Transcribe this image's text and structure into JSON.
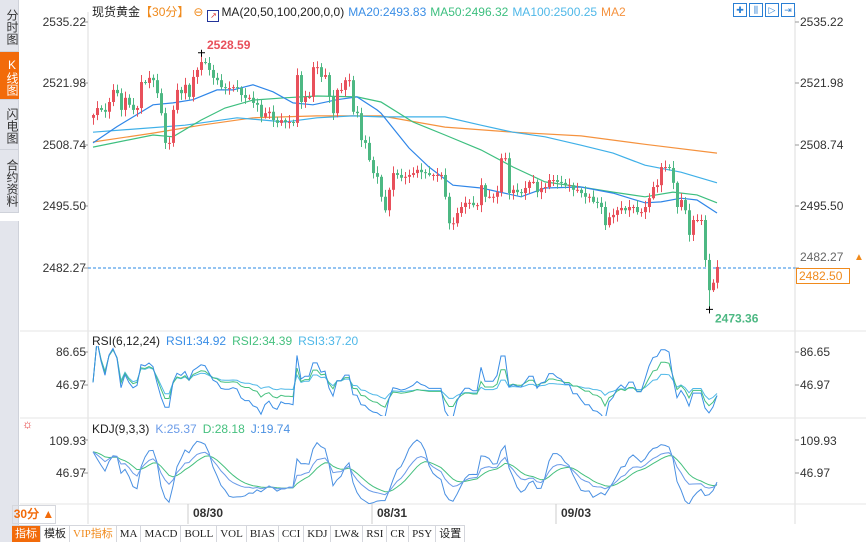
{
  "sidebar": {
    "items": [
      {
        "label": "分时图"
      },
      {
        "label": "K线图",
        "active": true
      },
      {
        "label": "闪电图"
      },
      {
        "label": "合约资料"
      }
    ]
  },
  "header": {
    "instrument": "现货黄金",
    "period": "【30分】",
    "ma_label": "MA(20,50,100,200,0,0)",
    "ma20": "MA20:2493.83",
    "ma50": "MA50:2496.32",
    "ma100": "MA100:2500.25",
    "ma200": "MA2"
  },
  "toolbar_icons": [
    "crosshair-icon",
    "zoom-range-icon",
    "step-icon",
    "jump-end-icon"
  ],
  "price_axis": {
    "labels": [
      "2535.22",
      "2521.98",
      "2508.74",
      "2495.50",
      "2482.27"
    ],
    "current_price": "2482.50"
  },
  "annotations": {
    "high": {
      "label": "2528.59",
      "value": 2528.59,
      "index": 27
    },
    "low": {
      "label": "2473.36",
      "value": 2473.36,
      "index": 154
    }
  },
  "rsi": {
    "title": "RSI(6,12,24)",
    "rsi1": "RSI1:34.92",
    "rsi2": "RSI2:34.39",
    "rsi3": "RSI3:37.20",
    "axis": [
      "86.65",
      "46.97"
    ]
  },
  "kdj": {
    "title": "KDJ(9,3,3)",
    "k": "K:25.37",
    "d": "D:28.18",
    "j": "J:19.74",
    "axis": [
      "109.93",
      "46.97"
    ]
  },
  "dates": [
    {
      "label": "08/30",
      "index": 24
    },
    {
      "label": "08/31",
      "index": 70
    },
    {
      "label": "09/03",
      "index": 116
    }
  ],
  "timeframe": "30分 ▲",
  "tabs": [
    "指标",
    "模板",
    "VIP指标",
    "MA",
    "MACD",
    "BOLL",
    "VOL",
    "BIAS",
    "CCI",
    "KDJ",
    "LW&",
    "RSI",
    "CR",
    "PSY",
    "设置"
  ],
  "colors": {
    "up": "#e8505b",
    "down": "#4db883",
    "ma20": "#2f86e8",
    "ma50": "#3dbf7f",
    "ma100": "#3fb0e8",
    "ma200": "#f5923e",
    "accent": "#f26b0a"
  },
  "chart_data": {
    "type": "candlestick",
    "ylim": [
      2470,
      2538
    ],
    "closes": [
      2515.2,
      2516.7,
      2516.3,
      2515.9,
      2518.0,
      2520.6,
      2519.9,
      2516.3,
      2518.9,
      2517.4,
      2516.3,
      2516.7,
      2522.3,
      2522.1,
      2523.2,
      2522.7,
      2519.9,
      2515.6,
      2509.2,
      2509.2,
      2516.3,
      2520.6,
      2519.9,
      2521.7,
      2519.1,
      2523.4,
      2524.9,
      2526.6,
      2526.4,
      2524.9,
      2523.2,
      2522.7,
      2521.2,
      2521.0,
      2521.0,
      2521.2,
      2521.0,
      2519.5,
      2518.9,
      2518.9,
      2517.8,
      2517.4,
      2514.8,
      2515.6,
      2515.9,
      2514.1,
      2513.5,
      2514.1,
      2513.7,
      2513.7,
      2513.5,
      2523.8,
      2518.0,
      2519.1,
      2519.1,
      2525.5,
      2525.5,
      2523.4,
      2523.8,
      2519.1,
      2515.6,
      2520.6,
      2520.6,
      2522.7,
      2522.7,
      2515.9,
      2515.6,
      2509.8,
      2509.2,
      2505.5,
      2502.7,
      2501.9,
      2497.6,
      2494.7,
      2499.1,
      2502.7,
      2502.3,
      2501.7,
      2501.9,
      2502.3,
      2502.7,
      2503.4,
      2502.9,
      2502.7,
      2502.3,
      2502.3,
      2502.3,
      2502.3,
      2497.6,
      2491.9,
      2491.9,
      2494.1,
      2495.4,
      2496.3,
      2496.3,
      2495.8,
      2495.8,
      2500.1,
      2497.6,
      2497.6,
      2497.6,
      2498.6,
      2505.9,
      2505.9,
      2498.4,
      2499.1,
      2498.6,
      2498.4,
      2499.5,
      2500.8,
      2500.8,
      2498.6,
      2499.5,
      2499.7,
      2501.2,
      2501.2,
      2500.8,
      2500.6,
      2500.1,
      2500.1,
      2499.1,
      2499.1,
      2498.4,
      2497.6,
      2497.6,
      2496.5,
      2496.3,
      2495.4,
      2491.5,
      2493.2,
      2493.7,
      2494.7,
      2495.2,
      2494.7,
      2495.4,
      2495.4,
      2494.3,
      2494.3,
      2495.4,
      2497.3,
      2499.7,
      2500.1,
      2504.0,
      2504.0,
      2503.8,
      2500.6,
      2495.4,
      2496.9,
      2494.7,
      2489.4,
      2492.6,
      2492.6,
      2492.6,
      2484.0,
      2477.5,
      2479.1,
      2482.5
    ],
    "ma": {
      "ma20": [
        [
          0,
          2509.2
        ],
        [
          6,
          2512.7
        ],
        [
          15,
          2517.4
        ],
        [
          20,
          2517.8
        ],
        [
          25,
          2518.5
        ],
        [
          31,
          2520.6
        ],
        [
          35,
          2520.6
        ],
        [
          40,
          2521.7
        ],
        [
          45,
          2520.2
        ],
        [
          50,
          2517.8
        ],
        [
          55,
          2517.4
        ],
        [
          61,
          2518.5
        ],
        [
          66,
          2519.1
        ],
        [
          71,
          2516.3
        ],
        [
          72,
          2515.6
        ],
        [
          79,
          2508.1
        ],
        [
          84,
          2504.0
        ],
        [
          90,
          2500.1
        ],
        [
          97,
          2499.5
        ],
        [
          107,
          2497.6
        ],
        [
          113,
          2499.5
        ],
        [
          122,
          2499.7
        ],
        [
          130,
          2498.4
        ],
        [
          138,
          2496.3
        ],
        [
          142,
          2496.5
        ],
        [
          147,
          2497.3
        ],
        [
          151,
          2496.9
        ],
        [
          156,
          2494.1
        ]
      ],
      "ma50": [
        [
          0,
          2508.3
        ],
        [
          15,
          2510.9
        ],
        [
          20,
          2510.5
        ],
        [
          27,
          2514.1
        ],
        [
          33,
          2516.7
        ],
        [
          40,
          2518.4
        ],
        [
          48,
          2518.9
        ],
        [
          56,
          2519.3
        ],
        [
          66,
          2519.1
        ],
        [
          72,
          2518.0
        ],
        [
          80,
          2513.7
        ],
        [
          88,
          2510.9
        ],
        [
          97,
          2507.7
        ],
        [
          105,
          2504.0
        ],
        [
          113,
          2500.8
        ],
        [
          122,
          2499.7
        ],
        [
          130,
          2498.6
        ],
        [
          138,
          2497.6
        ],
        [
          145,
          2498.6
        ],
        [
          151,
          2498.0
        ],
        [
          156,
          2496.3
        ]
      ],
      "ma100": [
        [
          0,
          2511.5
        ],
        [
          23,
          2513.0
        ],
        [
          36,
          2514.6
        ],
        [
          48,
          2513.7
        ],
        [
          56,
          2514.6
        ],
        [
          65,
          2515.0
        ],
        [
          72,
          2514.8
        ],
        [
          88,
          2514.8
        ],
        [
          97,
          2513.0
        ],
        [
          105,
          2511.5
        ],
        [
          113,
          2510.5
        ],
        [
          122,
          2508.7
        ],
        [
          130,
          2507.0
        ],
        [
          138,
          2504.4
        ],
        [
          147,
          2502.9
        ],
        [
          156,
          2500.6
        ]
      ],
      "ma200": [
        [
          0,
          2509.4
        ],
        [
          15,
          2511.3
        ],
        [
          27,
          2513.0
        ],
        [
          40,
          2514.6
        ],
        [
          56,
          2515.0
        ],
        [
          72,
          2515.0
        ],
        [
          88,
          2512.6
        ],
        [
          105,
          2511.5
        ],
        [
          122,
          2510.7
        ],
        [
          138,
          2508.9
        ],
        [
          156,
          2507.0
        ]
      ]
    }
  }
}
